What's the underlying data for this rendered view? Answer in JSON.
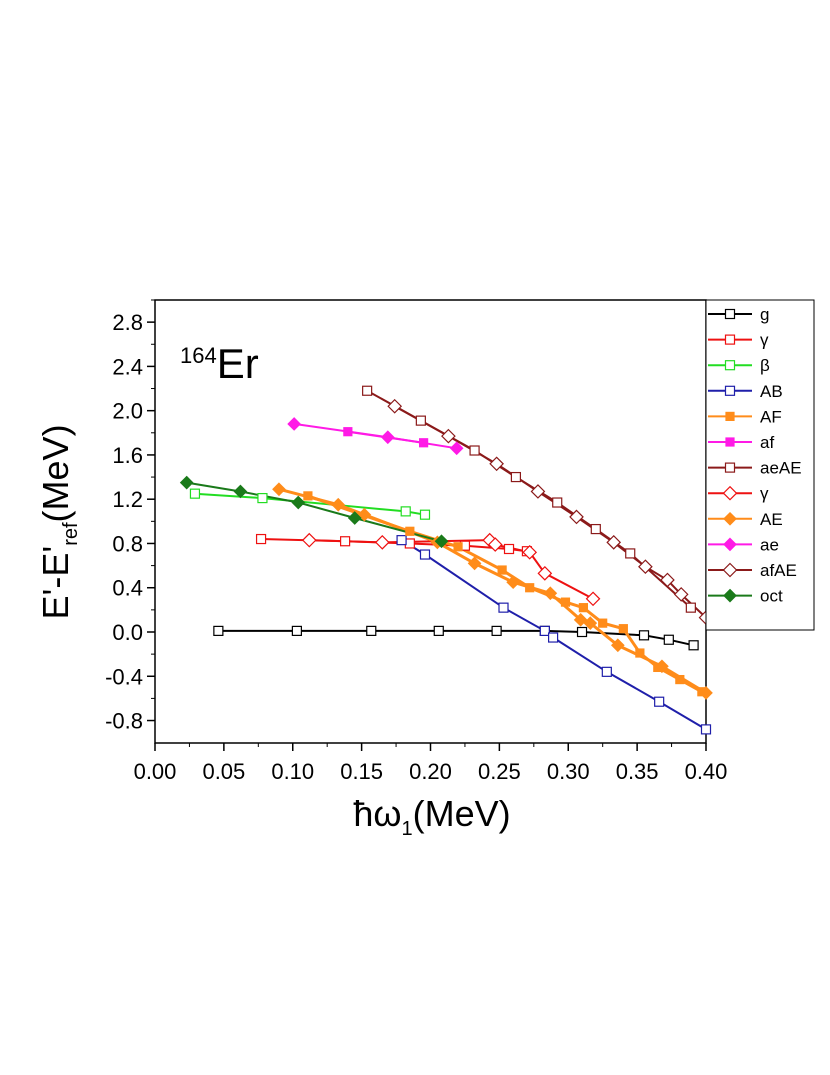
{
  "chart_data": {
    "type": "scatter",
    "title": "",
    "annotation": {
      "mass": "164",
      "element": "Er"
    },
    "xlabel": {
      "base": "ħω",
      "sub": "1",
      "unit": "(MeV)"
    },
    "ylabel": {
      "base": "E'-E'",
      "sub": "ref",
      "unit": "(MeV)"
    },
    "xlim": [
      0.0,
      0.4
    ],
    "ylim": [
      -0.95,
      3.0
    ],
    "xticks": [
      "0.00",
      "0.05",
      "0.10",
      "0.15",
      "0.20",
      "0.25",
      "0.30",
      "0.35",
      "0.40"
    ],
    "yticks": [
      "-0.8",
      "-0.4",
      "0.0",
      "0.4",
      "0.8",
      "1.2",
      "1.6",
      "2.0",
      "2.4",
      "2.8"
    ],
    "legend_position": "right-outside",
    "series": [
      {
        "name": "g",
        "color": "#000000",
        "marker": "square-open",
        "x": [
          0.046,
          0.103,
          0.157,
          0.206,
          0.248,
          0.283,
          0.31,
          0.355,
          0.373,
          0.391
        ],
        "y": [
          0.01,
          0.01,
          0.01,
          0.01,
          0.01,
          0.01,
          0.0,
          -0.03,
          -0.07,
          -0.12
        ]
      },
      {
        "name": "γ",
        "color": "#ee1111",
        "marker": "square-open",
        "x": [
          0.077,
          0.138,
          0.185,
          0.225,
          0.257,
          0.27
        ],
        "y": [
          0.84,
          0.82,
          0.8,
          0.78,
          0.75,
          0.73
        ]
      },
      {
        "name": "β",
        "color": "#22dd22",
        "marker": "square-open",
        "x": [
          0.029,
          0.078,
          0.182,
          0.196
        ],
        "y": [
          1.25,
          1.21,
          1.09,
          1.06
        ]
      },
      {
        "name": "AB",
        "color": "#1f1faa",
        "marker": "square-open",
        "x": [
          0.179,
          0.196,
          0.253,
          0.283,
          0.289,
          0.328,
          0.366,
          0.4
        ],
        "y": [
          0.83,
          0.7,
          0.22,
          0.01,
          -0.05,
          -0.36,
          -0.63,
          -0.88
        ]
      },
      {
        "name": "AF",
        "color": "#ff8c1a",
        "marker": "square-filled",
        "x": [
          0.111,
          0.185,
          0.22,
          0.252,
          0.272,
          0.298,
          0.311,
          0.325,
          0.34,
          0.352,
          0.365,
          0.381,
          0.397
        ],
        "y": [
          1.23,
          0.91,
          0.77,
          0.56,
          0.4,
          0.27,
          0.22,
          0.08,
          0.03,
          -0.19,
          -0.32,
          -0.43,
          -0.54
        ]
      },
      {
        "name": "af",
        "color": "#ff1ae6",
        "marker": "square-filled",
        "x": [
          0.14,
          0.195
        ],
        "y": [
          1.81,
          1.71
        ]
      },
      {
        "name": "aeAE",
        "color": "#8b1a1a",
        "marker": "square-open",
        "x": [
          0.154,
          0.193,
          0.232,
          0.262,
          0.292,
          0.32,
          0.345,
          0.389
        ],
        "y": [
          2.18,
          1.91,
          1.64,
          1.4,
          1.17,
          0.93,
          0.71,
          0.22
        ]
      },
      {
        "name": "γ",
        "color": "#ee1111",
        "marker": "diamond-open",
        "x": [
          0.112,
          0.165,
          0.243,
          0.247,
          0.272,
          0.283,
          0.318
        ],
        "y": [
          0.83,
          0.81,
          0.83,
          0.79,
          0.72,
          0.53,
          0.3
        ]
      },
      {
        "name": "AE",
        "color": "#ff8c1a",
        "marker": "diamond-filled",
        "x": [
          0.09,
          0.133,
          0.152,
          0.205,
          0.232,
          0.26,
          0.287,
          0.309,
          0.316,
          0.336,
          0.368,
          0.4
        ],
        "y": [
          1.29,
          1.15,
          1.06,
          0.81,
          0.62,
          0.45,
          0.35,
          0.11,
          0.08,
          -0.12,
          -0.31,
          -0.55
        ]
      },
      {
        "name": "ae",
        "color": "#ff1ae6",
        "marker": "diamond-filled",
        "x": [
          0.101,
          0.169,
          0.219
        ],
        "y": [
          1.88,
          1.76,
          1.66
        ]
      },
      {
        "name": "afAE",
        "color": "#8b1a1a",
        "marker": "diamond-open",
        "x": [
          0.174,
          0.213,
          0.248,
          0.278,
          0.306,
          0.333,
          0.356,
          0.372,
          0.382,
          0.4
        ],
        "y": [
          2.04,
          1.77,
          1.52,
          1.27,
          1.04,
          0.81,
          0.59,
          0.47,
          0.34,
          0.13
        ]
      },
      {
        "name": "oct",
        "color": "#1a7a1a",
        "marker": "diamond-filled",
        "x": [
          0.023,
          0.062,
          0.104,
          0.145,
          0.208
        ],
        "y": [
          1.35,
          1.27,
          1.17,
          1.03,
          0.82
        ]
      }
    ]
  }
}
